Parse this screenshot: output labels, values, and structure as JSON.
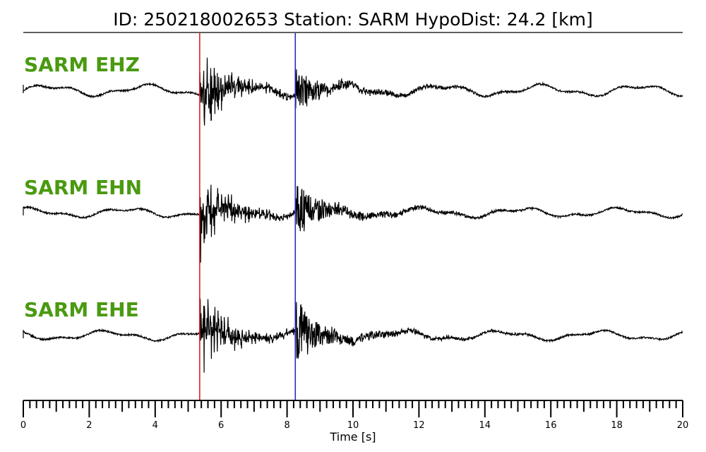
{
  "header": {
    "title": "ID: 250218002653   Station: SARM   HypoDist:    24.2 [km]"
  },
  "chart_data": {
    "type": "line",
    "title": "ID: 250218002653   Station: SARM   HypoDist:    24.2 [km]",
    "xlabel": "Time [s]",
    "xlim": [
      0,
      20
    ],
    "x_major_ticks": [
      0,
      2,
      4,
      6,
      8,
      10,
      12,
      14,
      16,
      18,
      20
    ],
    "x_minor_tick_step": 0.2,
    "event_id": "250218002653",
    "station": "SARM",
    "hypo_distance_km": 24.2,
    "picks": [
      {
        "phase": "P",
        "time_s": 5.35,
        "color": "#e02020"
      },
      {
        "phase": "S",
        "time_s": 8.25,
        "color": "#2030c0"
      }
    ],
    "series": [
      {
        "name": "SARM EHZ",
        "color": "#000000",
        "noise_amp": 0.12,
        "p_amp": 1.0,
        "s_amp": 0.45,
        "coda_level": 0.16
      },
      {
        "name": "SARM EHN",
        "color": "#000000",
        "noise_amp": 0.1,
        "p_amp": 1.0,
        "s_amp": 0.55,
        "coda_level": 0.18
      },
      {
        "name": "SARM EHE",
        "color": "#000000",
        "noise_amp": 0.1,
        "p_amp": 1.0,
        "s_amp": 0.6,
        "coda_level": 0.2
      }
    ],
    "grid": false,
    "label_color": "#4a9a10"
  }
}
